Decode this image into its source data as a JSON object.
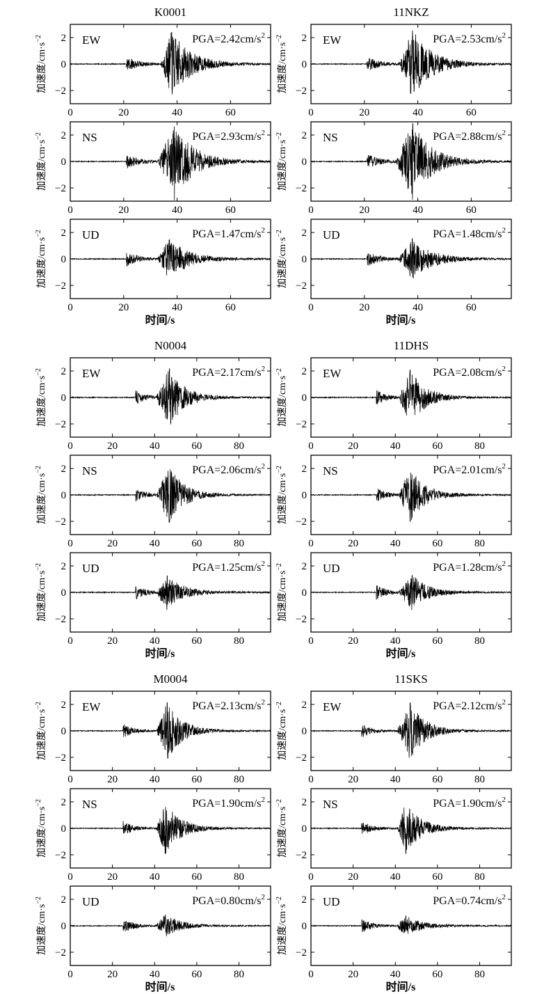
{
  "ylabel": "加速度/cm·s",
  "ylabel_sup": "−2",
  "xlabel": "时间/s",
  "y_tick_labels": [
    "2",
    "0",
    "−2"
  ],
  "pga_prefix": "PGA=",
  "pga_unit": "cm/s",
  "pga_unit_sup": "2",
  "chart_data": [
    {
      "type": "line",
      "title": "K0001",
      "xlim": [
        0,
        75
      ],
      "ylim": [
        -3,
        3
      ],
      "x_ticks": [
        0,
        20,
        40,
        60
      ],
      "y_ticks": [
        2,
        0,
        -2
      ],
      "xlabel": "时间/s",
      "ylabel": "加速度/cm·s−2",
      "series": [
        {
          "name": "EW",
          "pga": "2.42",
          "pga_value": 2.42,
          "p_arrival": 21,
          "s_arrival": 36,
          "peak_time": 38
        },
        {
          "name": "NS",
          "pga": "2.93",
          "pga_value": 2.93,
          "p_arrival": 21,
          "s_arrival": 35,
          "peak_time": 39
        },
        {
          "name": "UD",
          "pga": "1.47",
          "pga_value": 1.47,
          "p_arrival": 21,
          "s_arrival": 35,
          "peak_time": 37
        }
      ]
    },
    {
      "type": "line",
      "title": "11NKZ",
      "xlim": [
        0,
        75
      ],
      "ylim": [
        -3,
        3
      ],
      "x_ticks": [
        0,
        20,
        40,
        60
      ],
      "y_ticks": [
        2,
        0,
        -2
      ],
      "xlabel": "时间/s",
      "ylabel": "加速度/cm·s−2",
      "series": [
        {
          "name": "EW",
          "pga": "2.53",
          "pga_value": 2.53,
          "p_arrival": 21,
          "s_arrival": 35,
          "peak_time": 38
        },
        {
          "name": "NS",
          "pga": "2.88",
          "pga_value": 2.88,
          "p_arrival": 21,
          "s_arrival": 34,
          "peak_time": 38
        },
        {
          "name": "UD",
          "pga": "1.48",
          "pga_value": 1.48,
          "p_arrival": 21,
          "s_arrival": 35,
          "peak_time": 38
        }
      ]
    },
    {
      "type": "line",
      "title": "N0004",
      "xlim": [
        0,
        95
      ],
      "ylim": [
        -3,
        3
      ],
      "x_ticks": [
        0,
        20,
        40,
        60,
        80
      ],
      "y_ticks": [
        2,
        0,
        -2
      ],
      "xlabel": "时间/s",
      "ylabel": "加速度/cm·s−2",
      "series": [
        {
          "name": "EW",
          "pga": "2.17",
          "pga_value": 2.17,
          "p_arrival": 31,
          "s_arrival": 43,
          "peak_time": 47
        },
        {
          "name": "NS",
          "pga": "2.06",
          "pga_value": 2.06,
          "p_arrival": 31,
          "s_arrival": 43,
          "peak_time": 47
        },
        {
          "name": "UD",
          "pga": "1.25",
          "pga_value": 1.25,
          "p_arrival": 31,
          "s_arrival": 43,
          "peak_time": 46
        }
      ]
    },
    {
      "type": "line",
      "title": "11DHS",
      "xlim": [
        0,
        95
      ],
      "ylim": [
        -3,
        3
      ],
      "x_ticks": [
        0,
        20,
        40,
        60,
        80
      ],
      "y_ticks": [
        2,
        0,
        -2
      ],
      "xlabel": "时间/s",
      "ylabel": "加速度/cm·s−2",
      "series": [
        {
          "name": "EW",
          "pga": "2.08",
          "pga_value": 2.08,
          "p_arrival": 31,
          "s_arrival": 44,
          "peak_time": 47
        },
        {
          "name": "NS",
          "pga": "2.01",
          "pga_value": 2.01,
          "p_arrival": 31,
          "s_arrival": 44,
          "peak_time": 47
        },
        {
          "name": "UD",
          "pga": "1.28",
          "pga_value": 1.28,
          "p_arrival": 31,
          "s_arrival": 44,
          "peak_time": 48
        }
      ]
    },
    {
      "type": "line",
      "title": "M0004",
      "xlim": [
        0,
        95
      ],
      "ylim": [
        -3,
        3
      ],
      "x_ticks": [
        0,
        20,
        40,
        60,
        80
      ],
      "y_ticks": [
        2,
        0,
        -2
      ],
      "xlabel": "时间/s",
      "ylabel": "加速度/cm·s−2",
      "series": [
        {
          "name": "EW",
          "pga": "2.13",
          "pga_value": 2.13,
          "p_arrival": 25,
          "s_arrival": 43,
          "peak_time": 46
        },
        {
          "name": "NS",
          "pga": "1.90",
          "pga_value": 1.9,
          "p_arrival": 25,
          "s_arrival": 43,
          "peak_time": 45
        },
        {
          "name": "UD",
          "pga": "0.80",
          "pga_value": 0.8,
          "p_arrival": 25,
          "s_arrival": 43,
          "peak_time": 45
        }
      ]
    },
    {
      "type": "line",
      "title": "11SKS",
      "xlim": [
        0,
        95
      ],
      "ylim": [
        -3,
        3
      ],
      "x_ticks": [
        0,
        20,
        40,
        60,
        80
      ],
      "y_ticks": [
        2,
        0,
        -2
      ],
      "xlabel": "时间/s",
      "ylabel": "加速度/cm·s−2",
      "series": [
        {
          "name": "EW",
          "pga": "2.12",
          "pga_value": 2.12,
          "p_arrival": 24,
          "s_arrival": 43,
          "peak_time": 47
        },
        {
          "name": "NS",
          "pga": "1.90",
          "pga_value": 1.9,
          "p_arrival": 24,
          "s_arrival": 43,
          "peak_time": 45
        },
        {
          "name": "UD",
          "pga": "0.74",
          "pga_value": 0.74,
          "p_arrival": 24,
          "s_arrival": 43,
          "peak_time": 45
        }
      ]
    }
  ]
}
